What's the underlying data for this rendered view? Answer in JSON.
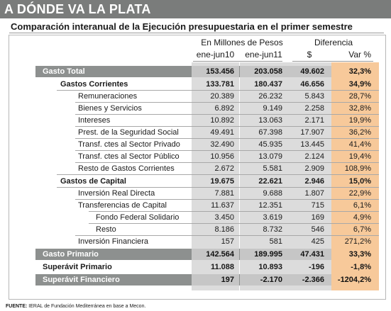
{
  "banner": {
    "title": "A DÓNDE VA LA PLATA"
  },
  "subtitle": "Comparación interanual de la Ejecución presupuestaria en el primer semestre",
  "headers": {
    "pesos_group": "En Millones de Pesos",
    "diff_group": "Diferencia",
    "col1": "ene-jun10",
    "col2": "ene-jun11",
    "col3": "$",
    "col4": "Var %"
  },
  "rows": [
    {
      "label": "Gasto Total",
      "v1": "153.456",
      "v2": "203.058",
      "v3": "49.602",
      "v4": "32,3%"
    },
    {
      "label": "Gastos Corrientes",
      "v1": "133.781",
      "v2": "180.437",
      "v3": "46.656",
      "v4": "34,9%"
    },
    {
      "label": "Remuneraciones",
      "v1": "20.389",
      "v2": "26.232",
      "v3": "5.843",
      "v4": "28,7%"
    },
    {
      "label": "Bienes y Servicios",
      "v1": "6.892",
      "v2": "9.149",
      "v3": "2.258",
      "v4": "32,8%"
    },
    {
      "label": "Intereses",
      "v1": "10.892",
      "v2": "13.063",
      "v3": "2.171",
      "v4": "19,9%"
    },
    {
      "label": "Prest. de la Seguridad Social",
      "v1": "49.491",
      "v2": "67.398",
      "v3": "17.907",
      "v4": "36,2%"
    },
    {
      "label": "Transf. ctes al Sector Privado",
      "v1": "32.490",
      "v2": "45.935",
      "v3": "13.445",
      "v4": "41,4%"
    },
    {
      "label": "Transf. ctes al Sector Público",
      "v1": "10.956",
      "v2": "13.079",
      "v3": "2.124",
      "v4": "19,4%"
    },
    {
      "label": "Resto de Gastos Corrientes",
      "v1": "2.672",
      "v2": "5.581",
      "v3": "2.909",
      "v4": "108,9%"
    },
    {
      "label": "Gastos de Capital",
      "v1": "19.675",
      "v2": "22.621",
      "v3": "2.946",
      "v4": "15,0%"
    },
    {
      "label": "Inversión Real Directa",
      "v1": "7.881",
      "v2": "9.688",
      "v3": "1.807",
      "v4": "22,9%"
    },
    {
      "label": "Transferencias de Capital",
      "v1": "11.637",
      "v2": "12.351",
      "v3": "715",
      "v4": "6,1%"
    },
    {
      "label": "Fondo Federal Solidario",
      "v1": "3.450",
      "v2": "3.619",
      "v3": "169",
      "v4": "4,9%"
    },
    {
      "label": "Resto",
      "v1": "8.186",
      "v2": "8.732",
      "v3": "546",
      "v4": "6,7%"
    },
    {
      "label": "Inversión Financiera",
      "v1": "157",
      "v2": "581",
      "v3": "425",
      "v4": "271,2%"
    },
    {
      "label": "Gasto Primario",
      "v1": "142.564",
      "v2": "189.995",
      "v3": "47.431",
      "v4": "33,3%"
    },
    {
      "label": "Superávit Primario",
      "v1": "11.088",
      "v2": "10.893",
      "v3": "-196",
      "v4": "-1,8%"
    },
    {
      "label": "Superávit Financiero",
      "v1": "197",
      "v2": "-2.170",
      "v3": "-2.366",
      "v4": "-1204,2%"
    }
  ],
  "footer": {
    "source_label": "FUENTE:",
    "source_text": "IERAL de Fundación Mediterránea en base a Mecon."
  },
  "colors": {
    "banner": "#7a7c7b",
    "dark_row": "#8d908f",
    "column_band": "#dcdcdc",
    "highlight_column": "#f7c99a"
  }
}
